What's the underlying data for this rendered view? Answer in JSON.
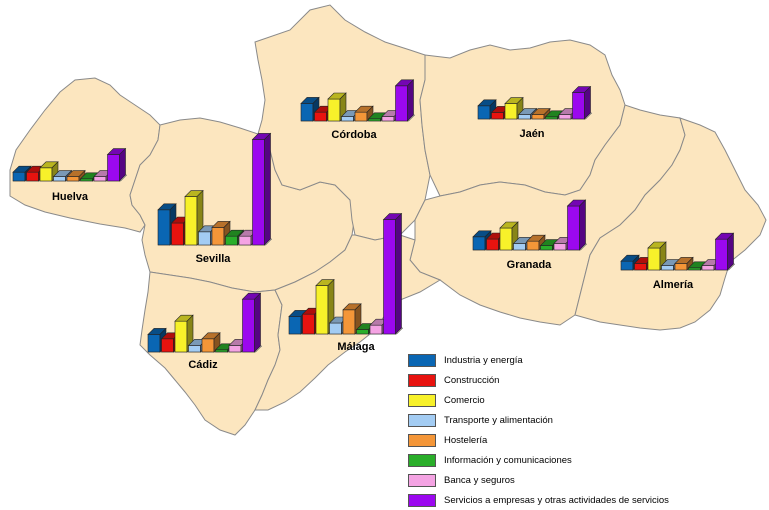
{
  "chart_data": {
    "type": "bar",
    "title": "",
    "categories": [
      "Industria y energía",
      "Construcción",
      "Comercio",
      "Transporte y alimentación",
      "Hostelería",
      "Información y comunicaciones",
      "Banca y seguros",
      "Servicios a empresas y otras actividades de servicios"
    ],
    "colors": [
      "#0a66b3",
      "#e8130f",
      "#f7f12a",
      "#a3ccf3",
      "#f49638",
      "#2aae2a",
      "#f4a3e3",
      "#9b08ef"
    ],
    "series": [
      {
        "name": "Huelva",
        "values": [
          2,
          2,
          3,
          1,
          1,
          0.5,
          1,
          6
        ]
      },
      {
        "name": "Sevilla",
        "values": [
          8,
          5,
          11,
          3,
          4,
          2,
          2,
          24
        ]
      },
      {
        "name": "Córdoba",
        "values": [
          4,
          2,
          5,
          1,
          2,
          0.5,
          1,
          8
        ]
      },
      {
        "name": "Jaén",
        "values": [
          3,
          1.5,
          3.5,
          1,
          1,
          0.5,
          1,
          6
        ]
      },
      {
        "name": "Granada",
        "values": [
          3,
          2.5,
          5,
          1.5,
          2,
          1,
          1.5,
          10
        ]
      },
      {
        "name": "Almería",
        "values": [
          2,
          1.5,
          5,
          1,
          1.5,
          0.5,
          1,
          7
        ]
      },
      {
        "name": "Cádiz",
        "values": [
          4,
          3,
          7,
          1.5,
          3,
          0.5,
          1.5,
          12
        ]
      },
      {
        "name": "Málaga",
        "values": [
          4,
          4.5,
          11,
          2.5,
          5.5,
          1,
          2,
          26
        ]
      }
    ]
  },
  "provinces": [
    {
      "name": "Huelva"
    },
    {
      "name": "Sevilla"
    },
    {
      "name": "Córdoba"
    },
    {
      "name": "Jaén"
    },
    {
      "name": "Granada"
    },
    {
      "name": "Almería"
    },
    {
      "name": "Cádiz"
    },
    {
      "name": "Málaga"
    }
  ],
  "map_colors": {
    "fill": "#fce6bf",
    "border": "#8a8a8a"
  }
}
